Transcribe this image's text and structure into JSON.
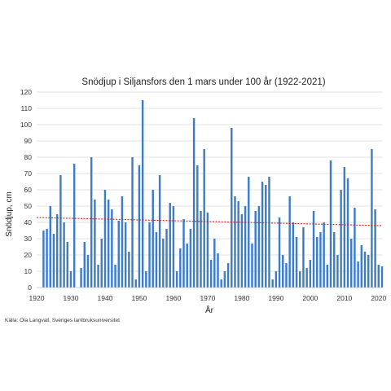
{
  "chart_data": {
    "type": "bar",
    "title": "Snödjup i Siljansfors den 1 mars under 100 år (1922-2021)",
    "xlabel": "År",
    "ylabel": "Snödjup, cm",
    "source": "Källa: Ola Langvall, Sveriges lantbruksuniversitet",
    "xlim": [
      1920,
      2021
    ],
    "ylim": [
      0,
      120
    ],
    "x_ticks": [
      "1920",
      "1930",
      "1940",
      "1950",
      "1960",
      "1970",
      "1980",
      "1990",
      "2000",
      "2010",
      "2020"
    ],
    "y_ticks": [
      "0",
      "10",
      "20",
      "30",
      "40",
      "50",
      "60",
      "70",
      "80",
      "90",
      "100",
      "110",
      "120"
    ],
    "grid": true,
    "x": [
      1922,
      1923,
      1924,
      1925,
      1926,
      1927,
      1928,
      1929,
      1930,
      1931,
      1932,
      1933,
      1934,
      1935,
      1936,
      1937,
      1938,
      1939,
      1940,
      1941,
      1942,
      1943,
      1944,
      1945,
      1946,
      1947,
      1948,
      1949,
      1950,
      1951,
      1952,
      1953,
      1954,
      1955,
      1956,
      1957,
      1958,
      1959,
      1960,
      1961,
      1962,
      1963,
      1964,
      1965,
      1966,
      1967,
      1968,
      1969,
      1970,
      1971,
      1972,
      1973,
      1974,
      1975,
      1976,
      1977,
      1978,
      1979,
      1980,
      1981,
      1982,
      1983,
      1984,
      1985,
      1986,
      1987,
      1988,
      1989,
      1990,
      1991,
      1992,
      1993,
      1994,
      1995,
      1996,
      1997,
      1998,
      1999,
      2000,
      2001,
      2002,
      2003,
      2004,
      2005,
      2006,
      2007,
      2008,
      2009,
      2010,
      2011,
      2012,
      2013,
      2014,
      2015,
      2016,
      2017,
      2018,
      2019,
      2020,
      2021
    ],
    "values": [
      35,
      36,
      50,
      33,
      45,
      69,
      40,
      28,
      10,
      76,
      0,
      12,
      28,
      20,
      80,
      54,
      14,
      30,
      60,
      54,
      48,
      14,
      41,
      56,
      40,
      22,
      80,
      5,
      75,
      115,
      10,
      40,
      60,
      34,
      69,
      30,
      36,
      52,
      50,
      10,
      24,
      42,
      27,
      36,
      104,
      75,
      47,
      85,
      46,
      17,
      30,
      21,
      5,
      10,
      15,
      98,
      56,
      53,
      45,
      50,
      68,
      27,
      47,
      50,
      65,
      63,
      68,
      5,
      10,
      43,
      20,
      15,
      56,
      40,
      31,
      10,
      37,
      12,
      17,
      47,
      31,
      34,
      40,
      14,
      78,
      34,
      20,
      60,
      74,
      67,
      30,
      49,
      16,
      26,
      22,
      20,
      85,
      48,
      14,
      13
    ],
    "bar_color": "#3d7cc9",
    "trend": {
      "name": "trend",
      "start": [
        1920,
        43
      ],
      "end": [
        2021,
        38
      ],
      "color": "#e01b1b",
      "dashed": true
    }
  }
}
